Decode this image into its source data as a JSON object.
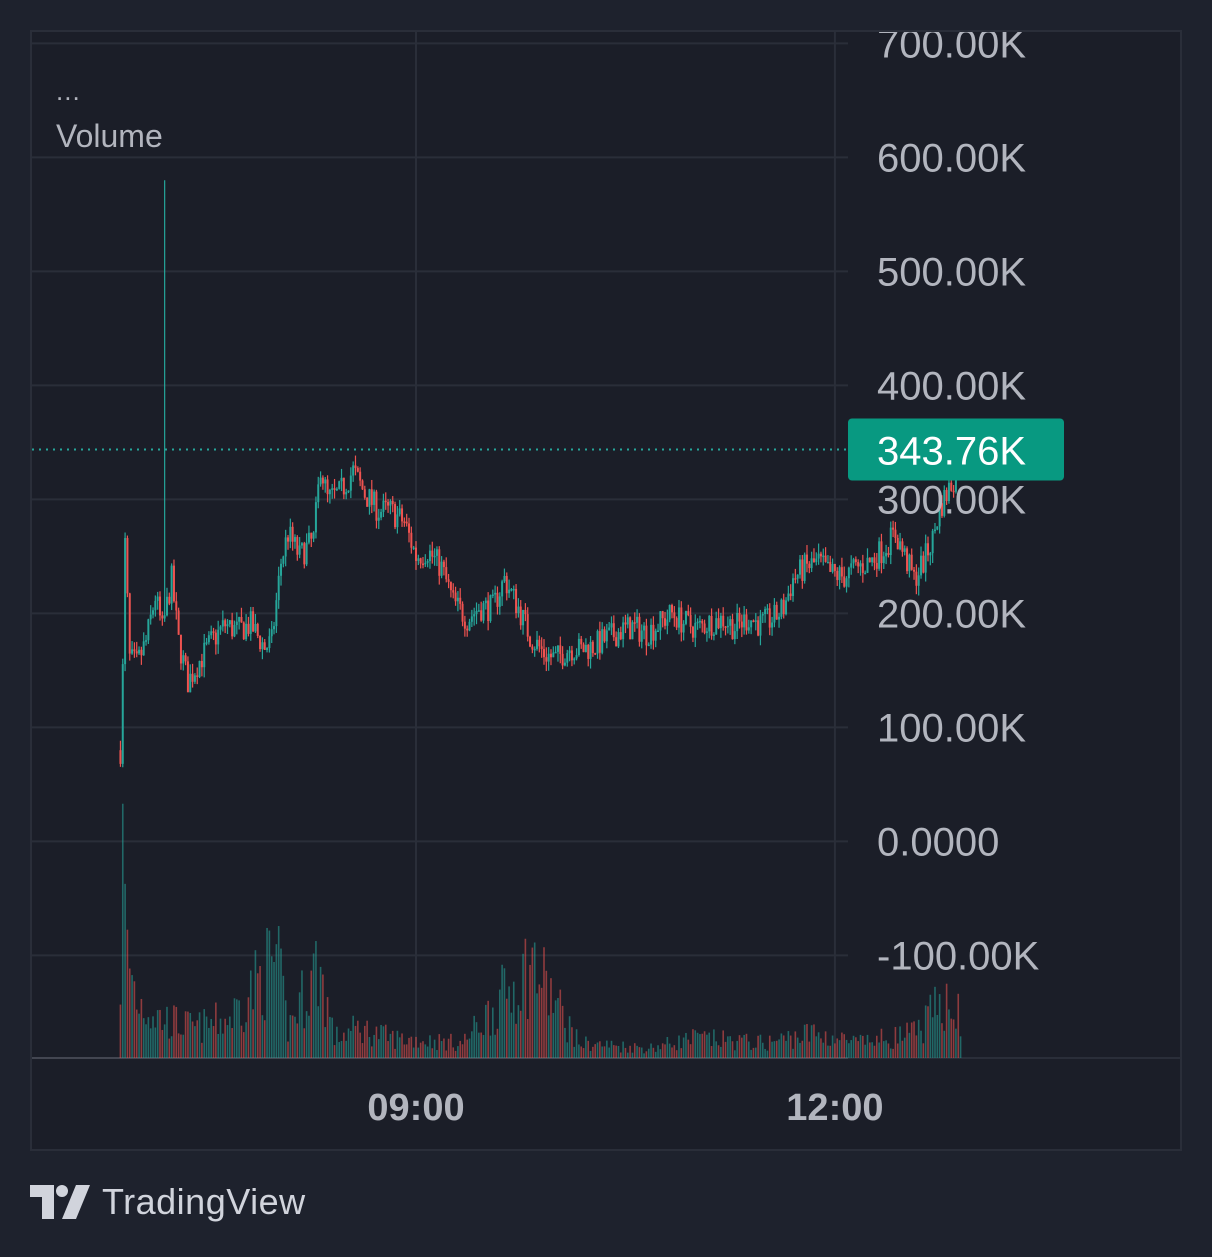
{
  "legend": {
    "collapsed_marker": "...",
    "pane_label": "Volume"
  },
  "branding": {
    "name": "TradingView",
    "icon": "tradingview-logo-icon"
  },
  "colors": {
    "background": "#1e222d",
    "pane_background": "#1b1e28",
    "grid": "#2a2e39",
    "axis_text": "#b2b5be",
    "up": "#26a69a",
    "down": "#ef5350",
    "last_price_badge": "#089981"
  },
  "chart_data": {
    "type": "candlestick",
    "title": "",
    "y_axis": {
      "side": "right",
      "ticks": [
        700000,
        600000,
        500000,
        400000,
        300000,
        200000,
        100000,
        0,
        -100000
      ],
      "tick_labels": [
        "700.00K",
        "600.00K",
        "500.00K",
        "400.00K",
        "300.00K",
        "200.00K",
        "100.00K",
        "0.0000",
        "-100.00K"
      ],
      "range": [
        -190000,
        710000
      ]
    },
    "x_axis": {
      "tick_labels": [
        "09:00",
        "12:00"
      ],
      "tick_times": [
        "09:00",
        "12:00"
      ],
      "range": [
        "06:15",
        "14:30"
      ],
      "bar_interval_minutes": 1
    },
    "grid": true,
    "last_price": {
      "value": 343760,
      "label": "343.76K",
      "line_style": "dotted"
    },
    "price_path": [
      [
        "06:53",
        80000
      ],
      [
        "06:54",
        150000
      ],
      [
        "06:55",
        260000
      ],
      [
        "06:57",
        160000
      ],
      [
        "07:00",
        155000
      ],
      [
        "07:04",
        175000
      ],
      [
        "07:08",
        215000
      ],
      [
        "07:11",
        185000
      ],
      [
        "07:15",
        230000
      ],
      [
        "07:18",
        175000
      ],
      [
        "07:22",
        140000
      ],
      [
        "07:26",
        155000
      ],
      [
        "07:32",
        175000
      ],
      [
        "07:38",
        190000
      ],
      [
        "07:43",
        185000
      ],
      [
        "07:49",
        190000
      ],
      [
        "07:55",
        170000
      ],
      [
        "07:58",
        175000
      ],
      [
        "08:02",
        245000
      ],
      [
        "08:05",
        270000
      ],
      [
        "08:10",
        250000
      ],
      [
        "08:16",
        265000
      ],
      [
        "08:19",
        330000
      ],
      [
        "08:22",
        300000
      ],
      [
        "08:27",
        305000
      ],
      [
        "08:33",
        325000
      ],
      [
        "08:38",
        305000
      ],
      [
        "08:44",
        290000
      ],
      [
        "08:49",
        290000
      ],
      [
        "08:55",
        280000
      ],
      [
        "09:00",
        250000
      ],
      [
        "09:05",
        255000
      ],
      [
        "09:11",
        240000
      ],
      [
        "09:16",
        210000
      ],
      [
        "09:22",
        195000
      ],
      [
        "09:27",
        205000
      ],
      [
        "09:33",
        205000
      ],
      [
        "09:38",
        230000
      ],
      [
        "09:44",
        205000
      ],
      [
        "09:49",
        180000
      ],
      [
        "09:55",
        165000
      ],
      [
        "10:00",
        160000
      ],
      [
        "10:06",
        170000
      ],
      [
        "10:11",
        168000
      ],
      [
        "10:17",
        172000
      ],
      [
        "10:22",
        178000
      ],
      [
        "10:28",
        185000
      ],
      [
        "10:33",
        188000
      ],
      [
        "10:39",
        183000
      ],
      [
        "10:44",
        190000
      ],
      [
        "10:50",
        200000
      ],
      [
        "10:55",
        192000
      ],
      [
        "11:01",
        187000
      ],
      [
        "11:06",
        192000
      ],
      [
        "11:12",
        195000
      ],
      [
        "11:17",
        188000
      ],
      [
        "11:23",
        196000
      ],
      [
        "11:28",
        190000
      ],
      [
        "11:34",
        196000
      ],
      [
        "11:38",
        205000
      ],
      [
        "11:42",
        230000
      ],
      [
        "11:47",
        240000
      ],
      [
        "11:53",
        245000
      ],
      [
        "11:58",
        235000
      ],
      [
        "12:04",
        232000
      ],
      [
        "12:09",
        240000
      ],
      [
        "12:15",
        245000
      ],
      [
        "12:20",
        255000
      ],
      [
        "12:26",
        270000
      ],
      [
        "12:30",
        250000
      ],
      [
        "12:34",
        230000
      ],
      [
        "12:38",
        245000
      ],
      [
        "12:42",
        265000
      ],
      [
        "12:45",
        292000
      ],
      [
        "12:48",
        305000
      ],
      [
        "12:51",
        318000
      ],
      [
        "12:54",
        343760
      ]
    ],
    "volume_path": [
      [
        "06:53",
        80000
      ],
      [
        "06:54",
        200000
      ],
      [
        "06:56",
        105000
      ],
      [
        "07:00",
        60000
      ],
      [
        "07:10",
        40000
      ],
      [
        "07:25",
        30000
      ],
      [
        "07:40",
        40000
      ],
      [
        "07:58",
        95000
      ],
      [
        "08:00",
        100000
      ],
      [
        "08:05",
        30000
      ],
      [
        "08:18",
        95000
      ],
      [
        "08:25",
        20000
      ],
      [
        "08:35",
        30000
      ],
      [
        "08:50",
        20000
      ],
      [
        "09:20",
        15000
      ],
      [
        "09:50",
        95000
      ],
      [
        "10:10",
        15000
      ],
      [
        "10:40",
        10000
      ],
      [
        "11:00",
        20000
      ],
      [
        "11:30",
        15000
      ],
      [
        "11:50",
        25000
      ],
      [
        "12:10",
        15000
      ],
      [
        "12:35",
        25000
      ],
      [
        "12:46",
        55000
      ],
      [
        "12:50",
        70000
      ],
      [
        "12:54",
        35000
      ]
    ],
    "volume_range": [
      0,
      210000
    ]
  }
}
